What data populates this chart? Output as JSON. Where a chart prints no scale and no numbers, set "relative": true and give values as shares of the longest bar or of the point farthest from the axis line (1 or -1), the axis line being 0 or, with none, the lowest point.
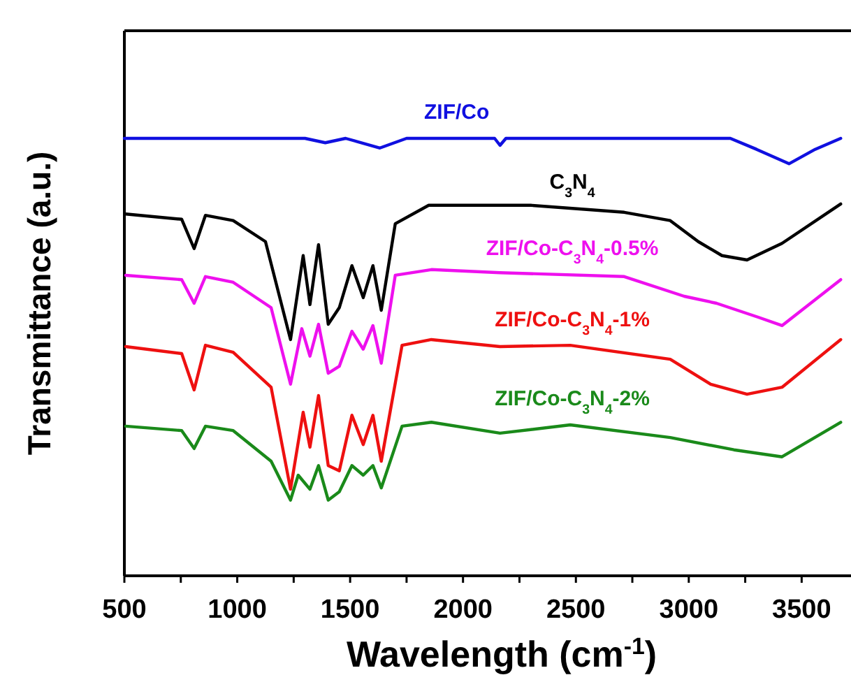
{
  "chart_data": {
    "type": "line",
    "relative": true,
    "xlabel": "Wavelength (cm$^{-1}$)",
    "ylabel": "Transmittance (a.u.)",
    "xlim": [
      500,
      3700
    ],
    "xticks": [
      500,
      {
        "value": 750,
        "label": null
      },
      1000,
      {
        "value": 1250,
        "label": null
      },
      1500,
      {
        "value": 1750,
        "label": null
      },
      2000,
      {
        "value": 2250,
        "label": null
      },
      2500,
      {
        "value": 2750,
        "label": null
      },
      3000,
      {
        "value": 3250,
        "label": null
      },
      3500
    ],
    "grid": false,
    "marker": "none",
    "line_style": "solid",
    "series": [
      {
        "name": "ZIF/Co",
        "color": "#1010e0",
        "x": [
          500,
          700,
          1300,
          1390,
          1480,
          1632,
          1750,
          2140,
          2164,
          2190,
          3184,
          3300,
          3444,
          3560,
          3673
        ],
        "values": [
          1.0,
          1.0,
          1.0,
          0.99,
          1.0,
          0.978,
          1.0,
          1.0,
          0.984,
          1.0,
          1.0,
          0.975,
          0.942,
          0.975,
          1.0
        ]
      },
      {
        "name": "C$_{3}$N$_{4}$",
        "color": "#000000",
        "x": [
          506,
          754,
          809,
          859,
          982,
          1125,
          1236,
          1292,
          1322,
          1360,
          1403,
          1452,
          1508,
          1558,
          1601,
          1638,
          1700,
          1848,
          2300,
          2714,
          2918,
          3042,
          3147,
          3258,
          3413,
          3673
        ],
        "values": [
          0.827,
          0.815,
          0.748,
          0.824,
          0.812,
          0.764,
          0.54,
          0.732,
          0.62,
          0.757,
          0.575,
          0.613,
          0.709,
          0.636,
          0.709,
          0.607,
          0.805,
          0.847,
          0.847,
          0.831,
          0.812,
          0.764,
          0.732,
          0.722,
          0.76,
          0.85
        ]
      },
      {
        "name": "ZIF/Co-C$_{3}$N$_{4}$-0.5%",
        "color": "#ee10ee",
        "x": [
          506,
          754,
          809,
          859,
          982,
          1150,
          1236,
          1286,
          1322,
          1360,
          1403,
          1452,
          1508,
          1558,
          1601,
          1638,
          1700,
          1860,
          2164,
          2714,
          2980,
          3123,
          3308,
          3413,
          3673
        ],
        "values": [
          0.687,
          0.677,
          0.623,
          0.684,
          0.671,
          0.613,
          0.438,
          0.565,
          0.502,
          0.575,
          0.463,
          0.479,
          0.559,
          0.518,
          0.572,
          0.486,
          0.687,
          0.7,
          0.693,
          0.684,
          0.639,
          0.623,
          0.591,
          0.572,
          0.677
        ]
      },
      {
        "name": "ZIF/Co-C$_{3}$N$_{4}$-1%",
        "color": "#ee1010",
        "x": [
          506,
          754,
          809,
          859,
          982,
          1150,
          1236,
          1292,
          1322,
          1360,
          1403,
          1452,
          1508,
          1558,
          1601,
          1638,
          1730,
          1860,
          2164,
          2475,
          2918,
          3097,
          3258,
          3413,
          3673
        ],
        "values": [
          0.524,
          0.508,
          0.425,
          0.527,
          0.511,
          0.431,
          0.198,
          0.374,
          0.294,
          0.412,
          0.252,
          0.24,
          0.367,
          0.3,
          0.367,
          0.262,
          0.527,
          0.54,
          0.524,
          0.527,
          0.495,
          0.438,
          0.415,
          0.431,
          0.54
        ]
      },
      {
        "name": "ZIF/Co-C$_{3}$N$_{4}$-2%",
        "color": "#1a8a1a",
        "x": [
          506,
          754,
          809,
          859,
          982,
          1150,
          1236,
          1270,
          1322,
          1360,
          1403,
          1452,
          1508,
          1558,
          1601,
          1638,
          1730,
          1860,
          2164,
          2475,
          2918,
          3200,
          3413,
          3673
        ],
        "values": [
          0.342,
          0.332,
          0.291,
          0.342,
          0.332,
          0.262,
          0.173,
          0.23,
          0.198,
          0.252,
          0.173,
          0.192,
          0.252,
          0.23,
          0.252,
          0.201,
          0.342,
          0.351,
          0.326,
          0.345,
          0.316,
          0.288,
          0.272,
          0.351
        ]
      }
    ]
  }
}
